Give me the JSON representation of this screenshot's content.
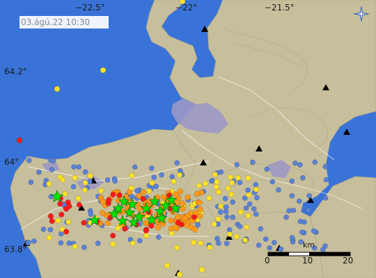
{
  "timestamp": "03.ágú.22 10:30",
  "latitude_labels": [
    "64.2°",
    "64°",
    "63.8°"
  ],
  "longitude_labels": [
    "−22.5°",
    "−22°",
    "−21.5°"
  ],
  "scale": {
    "unit": "km",
    "ticks": [
      "0",
      "10",
      "20"
    ]
  },
  "icons": {
    "compass": "compass-star-icon",
    "station": "triangle-station-icon",
    "quake": "circle-quake-icon",
    "large_quake": "star-quake-icon"
  },
  "colors": {
    "sea": "#3a73d8",
    "land": "#c7bf9c",
    "urban": "#9b98c6",
    "quake_recent": "#00e000",
    "quake_hours": "#ff1a1a",
    "quake_day": "#ff9a1a",
    "quake_days": "#ffe22a",
    "quake_older": "#5b82d6"
  }
}
